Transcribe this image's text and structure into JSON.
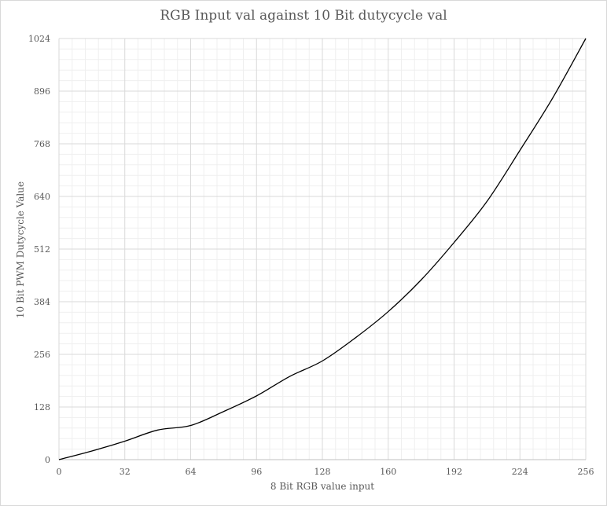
{
  "chart_data": {
    "type": "line",
    "title": "RGB Input val against 10 Bit dutycycle val",
    "xlabel": "8 Bit RGB value input",
    "ylabel": "10 Bit PWM Dutycycle Value",
    "xlim": [
      0,
      256
    ],
    "ylim": [
      0,
      1024
    ],
    "x_ticks": [
      0,
      32,
      64,
      96,
      128,
      160,
      192,
      224,
      256
    ],
    "y_ticks": [
      0,
      128,
      256,
      384,
      512,
      640,
      768,
      896,
      1024
    ],
    "grid": true,
    "legend": "none",
    "series": [
      {
        "color": "#000000",
        "x": [
          0,
          16,
          32,
          48,
          64,
          80,
          96,
          112,
          128,
          144,
          160,
          176,
          192,
          208,
          224,
          240,
          256
        ],
        "y": [
          0,
          21,
          45,
          72,
          83,
          117,
          155,
          202,
          240,
          296,
          360,
          437,
          528,
          628,
          752,
          880,
          1024
        ]
      }
    ]
  }
}
